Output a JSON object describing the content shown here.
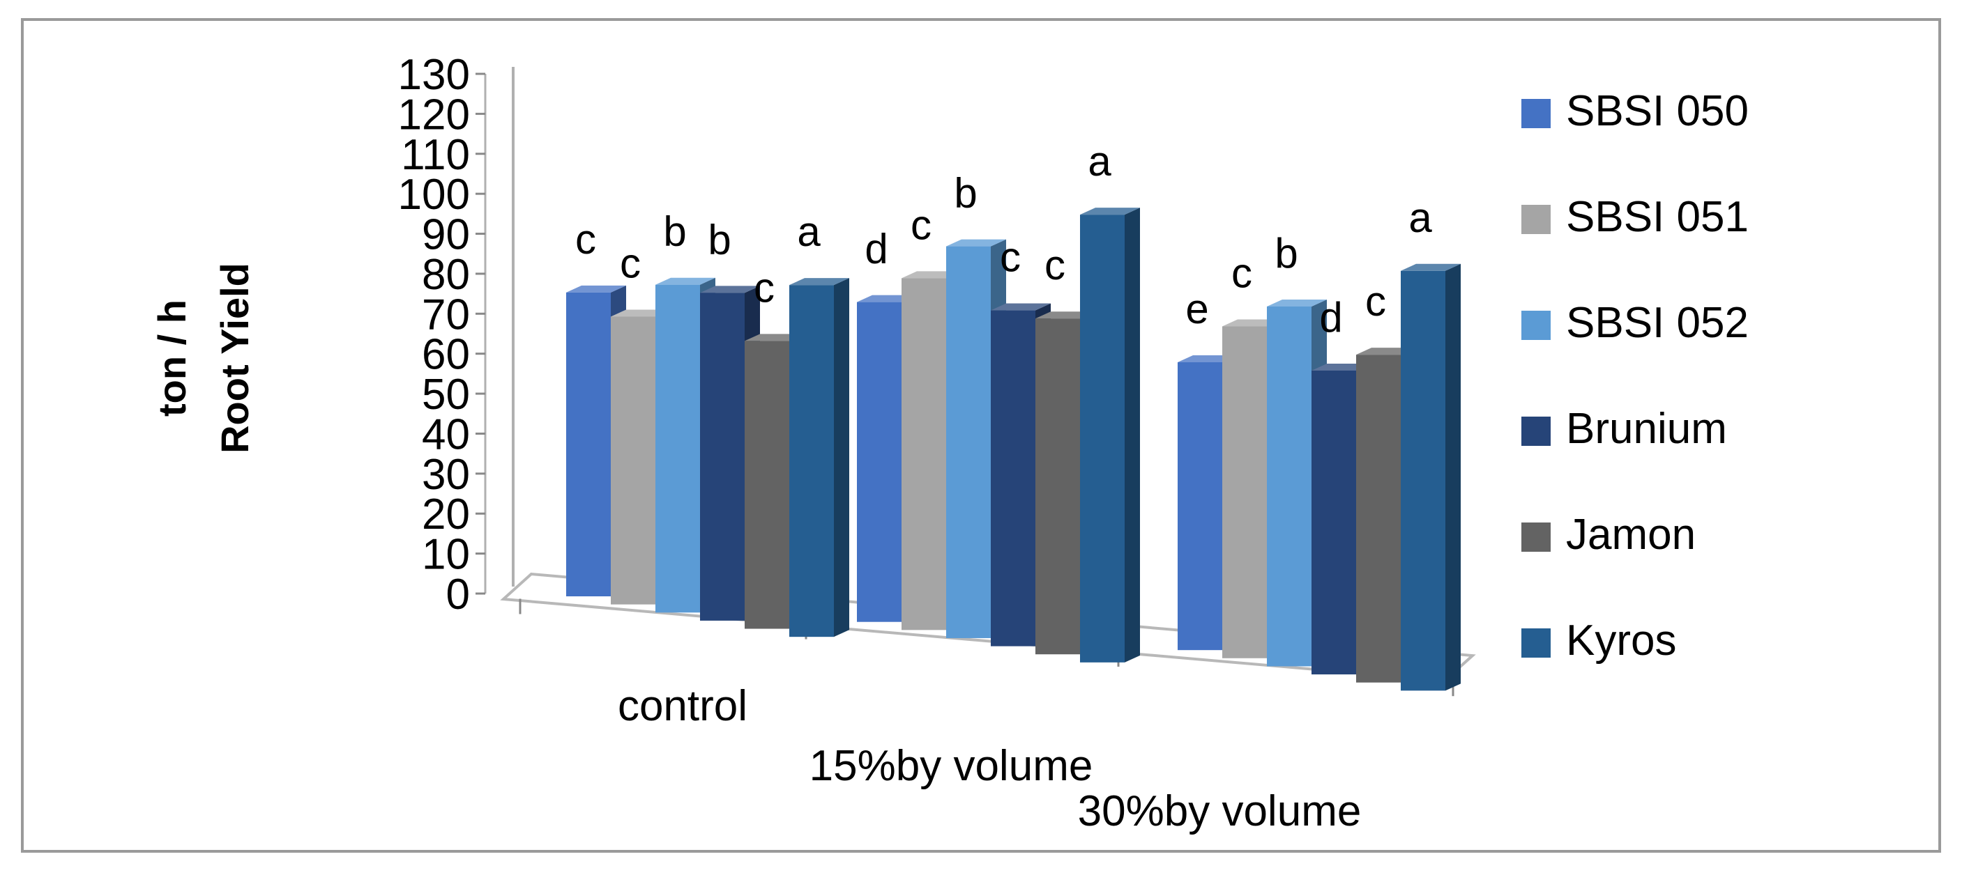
{
  "chart_data": {
    "type": "bar",
    "title": "",
    "xlabel": "",
    "ylabel_lines": [
      "ton / h",
      "Root Yield"
    ],
    "ylim": [
      0,
      130
    ],
    "yticks": [
      "0",
      "10",
      "20",
      "30",
      "40",
      "50",
      "60",
      "70",
      "80",
      "90",
      "100",
      "110",
      "120",
      "130"
    ],
    "categories": [
      "control",
      "15%by volume",
      "30%by volume"
    ],
    "legend_position": "right",
    "series": [
      {
        "name": "SBSI 050",
        "color": "#4472C4",
        "values": [
          76,
          80,
          72
        ],
        "labels": [
          "c",
          "d",
          "e"
        ]
      },
      {
        "name": "SBSI 051",
        "color": "#A5A5A5",
        "values": [
          72,
          88,
          83
        ],
        "labels": [
          "c",
          "c",
          "c"
        ]
      },
      {
        "name": "SBSI 052",
        "color": "#5B9BD5",
        "values": [
          82,
          98,
          90
        ],
        "labels": [
          "b",
          "b",
          "b"
        ]
      },
      {
        "name": "Brunium",
        "color": "#264478",
        "values": [
          82,
          84,
          76
        ],
        "labels": [
          "b",
          "c",
          "d"
        ]
      },
      {
        "name": "Jamon",
        "color": "#636363",
        "values": [
          72,
          84,
          82
        ],
        "labels": [
          "c",
          "c",
          "c"
        ]
      },
      {
        "name": "Kyros",
        "color": "#255E91",
        "values": [
          88,
          112,
          105
        ],
        "labels": [
          "a",
          "a",
          "a"
        ]
      }
    ]
  }
}
